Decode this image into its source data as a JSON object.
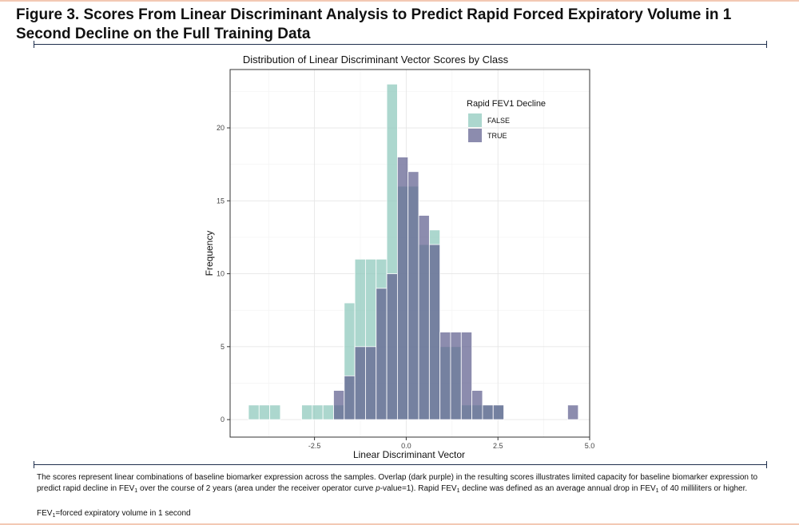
{
  "figure": {
    "title": "Figure 3. Scores From Linear Discriminant Analysis to Predict Rapid Forced Expiratory Volume in 1 Second Decline on the Full Training Data",
    "caption": {
      "seg1": "The scores represent linear combinations of baseline biomarker expression across the samples. Overlap (dark purple) in the resulting scores illustrates limited capacity for baseline biomarker expression to predict rapid decline in FEV",
      "sub1": "1",
      "seg2": " over the course of 2 years (area under the receiver operator curve ",
      "ital": "p",
      "seg3": "-value=1). Rapid FEV",
      "sub2": "1",
      "seg4": " decline was defined as an average annual drop in FEV",
      "sub3": "1",
      "seg5": " of 40 milliliters or higher."
    },
    "abbreviation": {
      "pre": "FEV",
      "sub": "1",
      "post": "=forced expiratory volume in 1 second"
    }
  },
  "chart_data": {
    "type": "bar",
    "subtype": "overlapping-histogram",
    "title": "Distribution of Linear Discriminant Vector Scores by Class",
    "xlabel": "Linear Discriminant Vector",
    "ylabel": "Frequency",
    "xlim": [
      -4.8,
      5.0
    ],
    "ylim": [
      -1.2,
      24.0
    ],
    "xticks": [
      -2.5,
      0.0,
      2.5,
      5.0
    ],
    "xtick_labels": [
      "-2.5",
      "0.0",
      "2.5",
      "5.0"
    ],
    "yticks": [
      0,
      5,
      10,
      15,
      20
    ],
    "ytick_labels": [
      "0",
      "5",
      "10",
      "15",
      "20"
    ],
    "grid": true,
    "legend_title": "Rapid FEV1 Decline",
    "legend_position": "top-right",
    "bin_width": 0.29,
    "series": [
      {
        "name": "FALSE",
        "color": "#8cc7bb",
        "bins": [
          {
            "x0": -4.3,
            "x1": -4.01,
            "count": 1
          },
          {
            "x0": -4.01,
            "x1": -3.72,
            "count": 1
          },
          {
            "x0": -3.72,
            "x1": -3.43,
            "count": 1
          },
          {
            "x0": -2.85,
            "x1": -2.56,
            "count": 1
          },
          {
            "x0": -2.56,
            "x1": -2.27,
            "count": 1
          },
          {
            "x0": -2.27,
            "x1": -1.98,
            "count": 1
          },
          {
            "x0": -1.98,
            "x1": -1.69,
            "count": 1
          },
          {
            "x0": -1.69,
            "x1": -1.4,
            "count": 8
          },
          {
            "x0": -1.4,
            "x1": -1.11,
            "count": 11
          },
          {
            "x0": -1.11,
            "x1": -0.82,
            "count": 11
          },
          {
            "x0": -0.82,
            "x1": -0.53,
            "count": 11
          },
          {
            "x0": -0.53,
            "x1": -0.24,
            "count": 23
          },
          {
            "x0": -0.24,
            "x1": 0.05,
            "count": 16
          },
          {
            "x0": 0.05,
            "x1": 0.34,
            "count": 16
          },
          {
            "x0": 0.34,
            "x1": 0.63,
            "count": 12
          },
          {
            "x0": 0.63,
            "x1": 0.92,
            "count": 13
          },
          {
            "x0": 0.92,
            "x1": 1.21,
            "count": 5
          },
          {
            "x0": 1.21,
            "x1": 1.5,
            "count": 5
          },
          {
            "x0": 1.5,
            "x1": 1.79,
            "count": 1
          },
          {
            "x0": 1.79,
            "x1": 2.08,
            "count": 1
          },
          {
            "x0": 2.08,
            "x1": 2.37,
            "count": 1
          },
          {
            "x0": 2.37,
            "x1": 2.66,
            "count": 1
          }
        ]
      },
      {
        "name": "TRUE",
        "color": "#5f5f8f",
        "bins": [
          {
            "x0": -1.98,
            "x1": -1.69,
            "count": 2
          },
          {
            "x0": -1.69,
            "x1": -1.4,
            "count": 3
          },
          {
            "x0": -1.4,
            "x1": -1.11,
            "count": 5
          },
          {
            "x0": -1.11,
            "x1": -0.82,
            "count": 5
          },
          {
            "x0": -0.82,
            "x1": -0.53,
            "count": 9
          },
          {
            "x0": -0.53,
            "x1": -0.24,
            "count": 10
          },
          {
            "x0": -0.24,
            "x1": 0.05,
            "count": 18
          },
          {
            "x0": 0.05,
            "x1": 0.34,
            "count": 17
          },
          {
            "x0": 0.34,
            "x1": 0.63,
            "count": 14
          },
          {
            "x0": 0.63,
            "x1": 0.92,
            "count": 12
          },
          {
            "x0": 0.92,
            "x1": 1.21,
            "count": 6
          },
          {
            "x0": 1.21,
            "x1": 1.5,
            "count": 6
          },
          {
            "x0": 1.5,
            "x1": 1.79,
            "count": 6
          },
          {
            "x0": 1.79,
            "x1": 2.08,
            "count": 2
          },
          {
            "x0": 2.08,
            "x1": 2.37,
            "count": 1
          },
          {
            "x0": 2.37,
            "x1": 2.66,
            "count": 1
          },
          {
            "x0": 4.4,
            "x1": 4.69,
            "count": 1
          }
        ]
      }
    ]
  }
}
